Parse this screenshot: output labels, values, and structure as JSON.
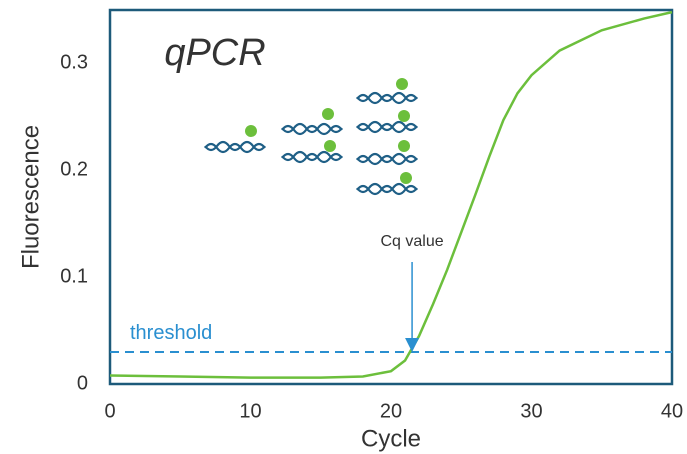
{
  "chart_data": {
    "type": "line",
    "title": "qPCR",
    "xlabel": "Cycle",
    "ylabel": "Fluorescence",
    "x": [
      0,
      5,
      10,
      15,
      18,
      20,
      21,
      22,
      23,
      24,
      25,
      26,
      27,
      28,
      29,
      30,
      32,
      35,
      38,
      40
    ],
    "values": [
      0.008,
      0.007,
      0.006,
      0.006,
      0.007,
      0.012,
      0.022,
      0.045,
      0.075,
      0.107,
      0.142,
      0.177,
      0.213,
      0.247,
      0.272,
      0.289,
      0.312,
      0.331,
      0.342,
      0.348
    ],
    "color": "#6cbf3c",
    "xlim": [
      0,
      40
    ],
    "ylim": [
      0,
      0.35
    ],
    "xticks": [
      0,
      10,
      20,
      30,
      40
    ],
    "yticks": [
      0,
      0.1,
      0.2,
      0.3
    ],
    "threshold": {
      "value": 0.03,
      "label": "threshold",
      "color": "#2a8fd0"
    },
    "annotation": {
      "text": "Cq value",
      "x": 21.5
    }
  }
}
